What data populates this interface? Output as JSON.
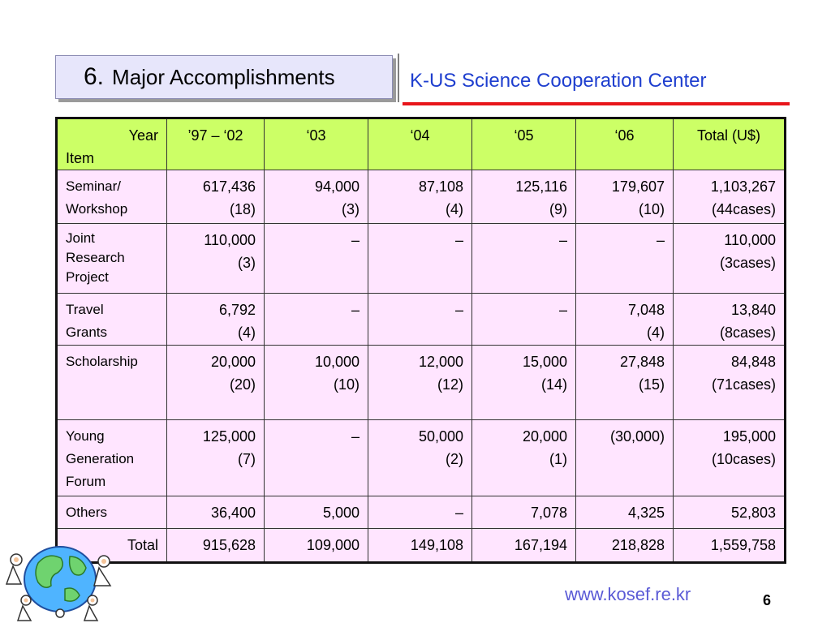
{
  "title": {
    "number": "6.",
    "text": "Major Accomplishments"
  },
  "center_name": "K-US Science Cooperation Center",
  "table": {
    "header": {
      "year_label": "Year",
      "item_label": "Item",
      "columns": [
        "’97 – ‘02",
        "‘03",
        "‘04",
        "‘05",
        "‘06",
        "Total (U$)"
      ]
    },
    "rows": [
      {
        "item": [
          "Seminar/",
          "Workshop"
        ],
        "cells": [
          [
            "617,436",
            "(18)"
          ],
          [
            "94,000",
            "(3)"
          ],
          [
            "87,108",
            "(4)"
          ],
          [
            "125,116",
            "(9)"
          ],
          [
            "179,607",
            "(10)"
          ],
          [
            "1,103,267",
            "(44cases)"
          ]
        ]
      },
      {
        "item": [
          "Joint",
          "Research",
          "Project"
        ],
        "cells": [
          [
            "110,000",
            "(3)"
          ],
          [
            "–",
            ""
          ],
          [
            "–",
            ""
          ],
          [
            "–",
            ""
          ],
          [
            "–",
            ""
          ],
          [
            "110,000",
            "(3cases)"
          ]
        ]
      },
      {
        "item": [
          "Travel",
          "Grants"
        ],
        "cells": [
          [
            "6,792",
            "(4)"
          ],
          [
            "–",
            ""
          ],
          [
            "–",
            ""
          ],
          [
            "–",
            ""
          ],
          [
            "7,048",
            "(4)"
          ],
          [
            "13,840",
            "(8cases)"
          ]
        ]
      },
      {
        "item": [
          "Scholarship"
        ],
        "cells": [
          [
            "20,000",
            "(20)"
          ],
          [
            "10,000",
            "(10)"
          ],
          [
            "12,000",
            "(12)"
          ],
          [
            "15,000",
            "(14)"
          ],
          [
            "27,848",
            "(15)"
          ],
          [
            "84,848",
            "(71cases)"
          ]
        ]
      },
      {
        "item": [
          "Young",
          "Generation",
          "Forum"
        ],
        "cells": [
          [
            "125,000",
            "(7)"
          ],
          [
            "–",
            ""
          ],
          [
            "50,000",
            "(2)"
          ],
          [
            "20,000",
            "(1)"
          ],
          [
            "(30,000)",
            ""
          ],
          [
            "195,000",
            "(10cases)"
          ]
        ]
      },
      {
        "item": [
          "Others"
        ],
        "cells": [
          [
            "36,400",
            ""
          ],
          [
            "5,000",
            ""
          ],
          [
            "–",
            ""
          ],
          [
            "7,078",
            ""
          ],
          [
            "4,325",
            ""
          ],
          [
            "52,803",
            ""
          ]
        ]
      },
      {
        "item": [
          "Total"
        ],
        "cells": [
          [
            "915,628",
            ""
          ],
          [
            "109,000",
            ""
          ],
          [
            "149,108",
            ""
          ],
          [
            "167,194",
            ""
          ],
          [
            "218,828",
            ""
          ],
          [
            "1,559,758",
            ""
          ]
        ]
      }
    ]
  },
  "footer": {
    "url": "www.kosef.re.kr",
    "page_number": "6"
  },
  "icons": {
    "clipart": "globe-people-clipart-icon"
  }
}
